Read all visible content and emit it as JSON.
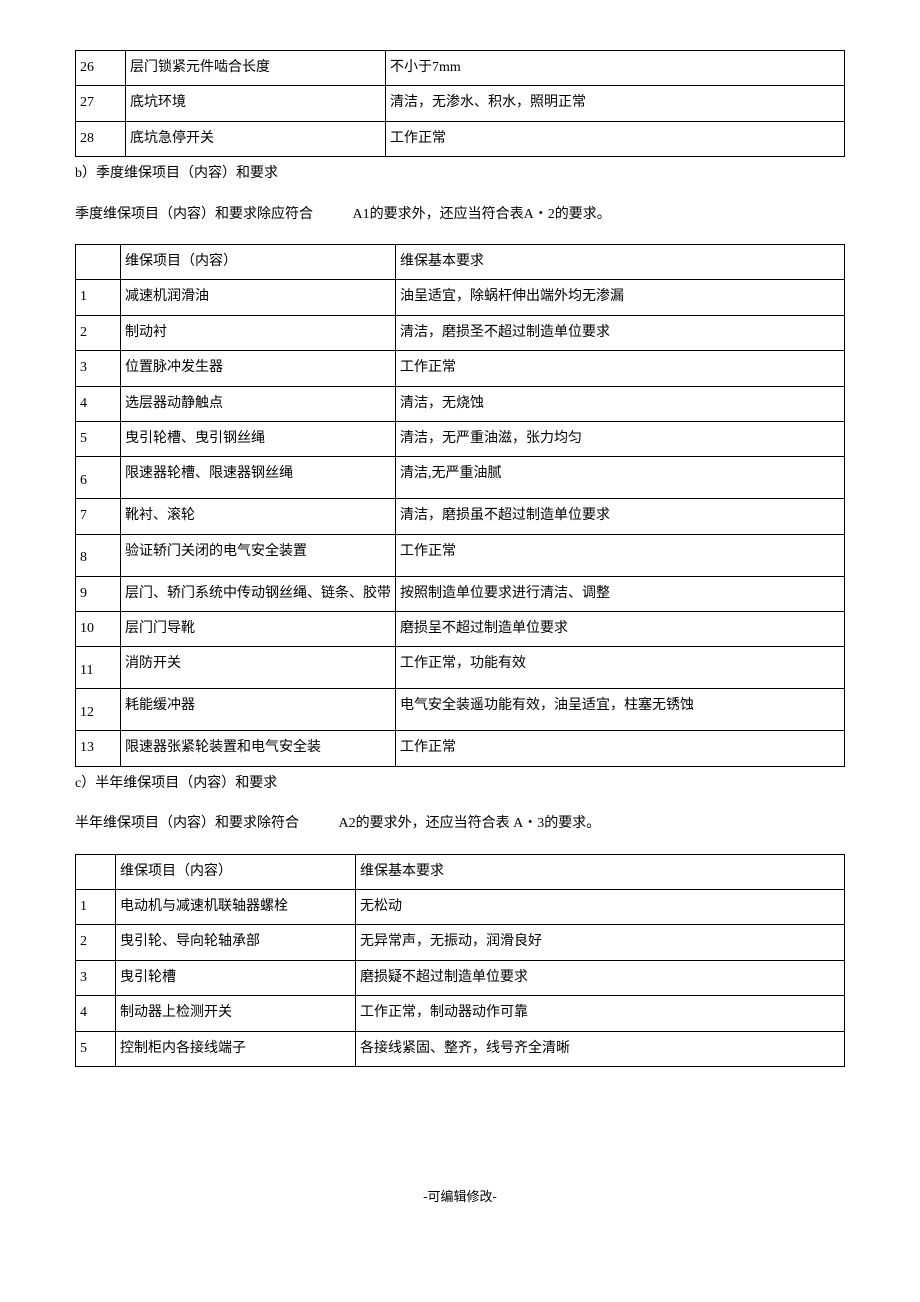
{
  "table1": {
    "rows": [
      {
        "n": "26",
        "item": "层门锁紧元件啮合长度",
        "req": "不小于7mm"
      },
      {
        "n": "27",
        "item": "底坑环境",
        "req": "清洁，无渗水、积水，照明正常"
      },
      {
        "n": "28",
        "item": "底坑急停开关",
        "req": "工作正常"
      }
    ]
  },
  "section_b": {
    "label": "b）季度维保项目（内容）和要求",
    "sentence1": "季度维保项目（内容）和要求除应符合",
    "sentence2": "A1的要求外，还应当符合表A・2的要求。"
  },
  "table2": {
    "header": {
      "item": "维保项目（内容）",
      "req": "维保基本要求"
    },
    "rows": [
      {
        "n": "1",
        "item": "减速机润滑油",
        "req": "油呈适宜，除蜗杆伸出端外均无渗漏"
      },
      {
        "n": "2",
        "item": "制动衬",
        "req": "清洁，磨损圣不超过制造单位要求"
      },
      {
        "n": "3",
        "item": "位置脉冲发生器",
        "req": "工作正常"
      },
      {
        "n": "4",
        "item": "选层器动静触点",
        "req": "清洁，无烧蚀"
      },
      {
        "n": "5",
        "item": "曳引轮槽、曳引钢丝绳",
        "req": "清洁，无严重油滋，张力均匀"
      },
      {
        "n": "6",
        "item": "限速器轮槽、限速器钢丝绳",
        "req": "清洁,无严重油腻",
        "numBottom": true
      },
      {
        "n": "7",
        "item": "靴衬、滚轮",
        "req": "清洁，磨损虽不超过制造单位要求"
      },
      {
        "n": "8",
        "item": "验证轿门关闭的电气安全装置",
        "req": "工作正常",
        "numBottom": true
      },
      {
        "n": "9",
        "item": "层门、轿门系统中传动钢丝绳、链条、胶带",
        "req": "按照制造单位要求进行清洁、调整"
      },
      {
        "n": "10",
        "item": "层门门导靴",
        "req": "磨损呈不超过制造单位要求"
      },
      {
        "n": "11",
        "item": "消防开关",
        "req": "工作正常，功能有效",
        "numBottom": true
      },
      {
        "n": "12",
        "item": "耗能缓冲器",
        "req": "电气安全装遥功能有效，油呈适宜，柱塞无锈蚀",
        "numBottom": true
      },
      {
        "n": "13",
        "item": "限速器张紧轮装置和电气安全装",
        "req": "工作正常"
      }
    ]
  },
  "section_c": {
    "label": "c）半年维保项目（内容）和要求",
    "sentence1": "半年维保项目（内容）和要求除符合",
    "sentence2": "A2的要求外，还应当符合表 A・3的要求。"
  },
  "table3": {
    "header": {
      "item": "维保项目（内容）",
      "req": "维保基本要求"
    },
    "rows": [
      {
        "n": "1",
        "item": "电动机与减速机联轴器螺栓",
        "req": "无松动",
        "numBottom": true
      },
      {
        "n": "2",
        "item": "曳引轮、导向轮轴承部",
        "req": "无异常声，无振动，润滑良好"
      },
      {
        "n": "3",
        "item": "曳引轮槽",
        "req": "磨损疑不超过制造单位要求"
      },
      {
        "n": "4",
        "item": "制动器上检测开关",
        "req": "工作正常，制动器动作可靠"
      },
      {
        "n": "5",
        "item": "控制柜内各接线端子",
        "req": "各接线紧固、整齐，线号齐全清晰"
      }
    ]
  },
  "footer": "-可编辑修改-"
}
